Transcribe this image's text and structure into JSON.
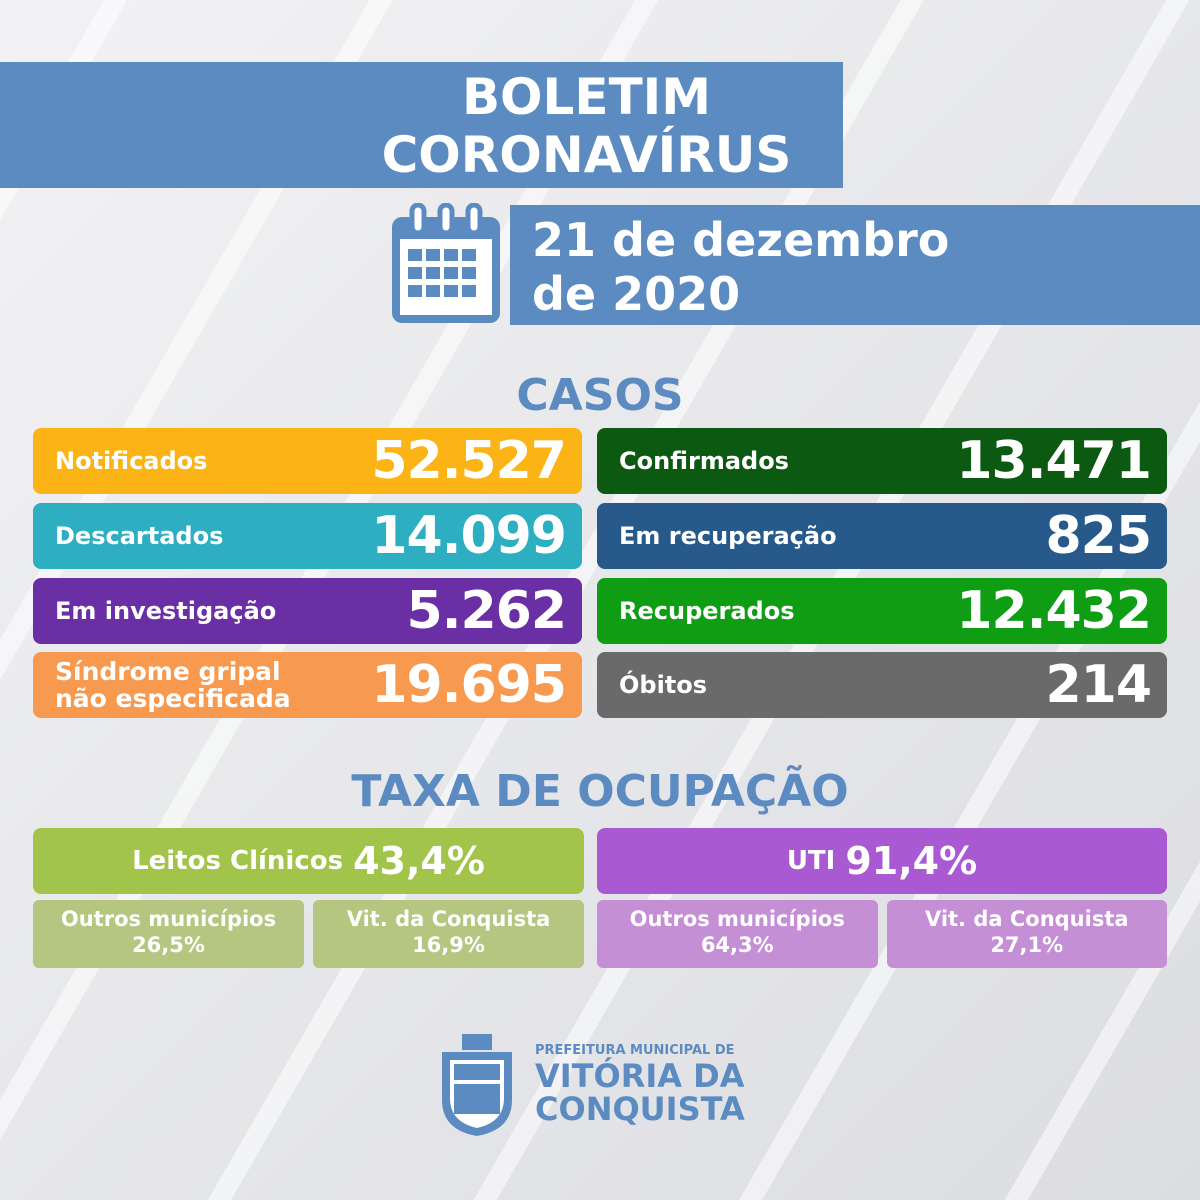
{
  "header": {
    "title_lines": [
      "BOLETIM",
      "CORONAVÍRUS"
    ],
    "date_lines": [
      "21 de dezembro",
      "de 2020"
    ]
  },
  "cases": {
    "title": "CASOS",
    "items": [
      {
        "label": "Notificados",
        "value": "52.527",
        "color": "#fbb316"
      },
      {
        "label": "Confirmados",
        "value": "13.471",
        "color": "#0c5a12"
      },
      {
        "label": "Descartados",
        "value": "14.099",
        "color": "#2eaec1"
      },
      {
        "label": "Em recuperação",
        "value": "825",
        "color": "#27598a"
      },
      {
        "label": "Em investigação",
        "value": "5.262",
        "color": "#6a2fa5"
      },
      {
        "label": "Recuperados",
        "value": "12.432",
        "color": "#0f9d13"
      },
      {
        "label": "Síndrome gripal não especificada",
        "value": "19.695",
        "color": "#f7994f"
      },
      {
        "label": "Óbitos",
        "value": "214",
        "color": "#6a6a6b"
      }
    ]
  },
  "occupancy": {
    "title": "TAXA DE OCUPAÇÃO",
    "groups": [
      {
        "label": "Leitos Clínicos",
        "value": "43,4%",
        "color": "#a3c44a",
        "sub_color": "#b4c67f",
        "subs": [
          {
            "label": "Outros municípios",
            "value": "26,5%"
          },
          {
            "label": "Vit. da Conquista",
            "value": "16,9%"
          }
        ]
      },
      {
        "label": "UTI",
        "value": "91,4%",
        "color": "#a95ad3",
        "sub_color": "#c48fd4",
        "subs": [
          {
            "label": "Outros municípios",
            "value": "64,3%"
          },
          {
            "label": "Vit. da Conquista",
            "value": "27,1%"
          }
        ]
      }
    ]
  },
  "footer": {
    "lines": [
      "PREFEITURA MUNICIPAL DE",
      "VITÓRIA DA",
      "CONQUISTA"
    ]
  }
}
